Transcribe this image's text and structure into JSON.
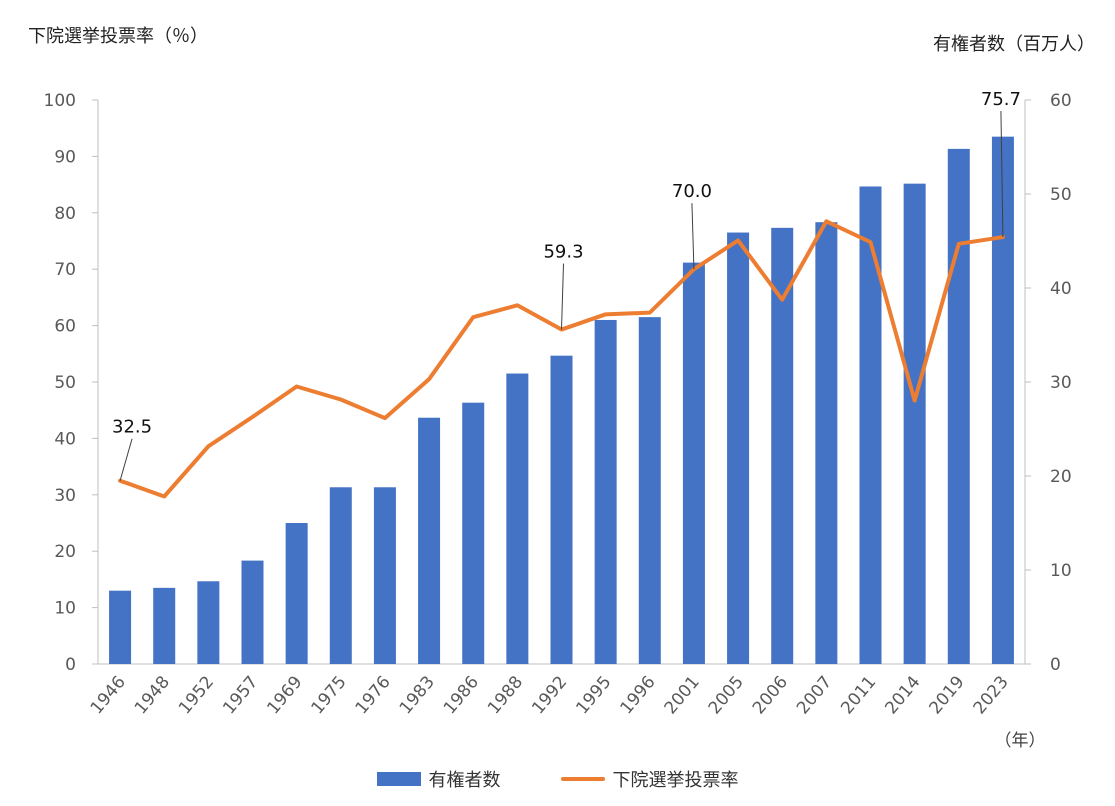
{
  "chart_data": {
    "type": "bar+line",
    "categories": [
      "1946",
      "1948",
      "1952",
      "1957",
      "1969",
      "1975",
      "1976",
      "1983",
      "1986",
      "1988",
      "1992",
      "1995",
      "1996",
      "2001",
      "2005",
      "2006",
      "2007",
      "2011",
      "2014",
      "2019",
      "2023"
    ],
    "series": [
      {
        "name": "有権者数",
        "type": "bar",
        "axis": "right",
        "color": "#4472C4",
        "values": [
          7.8,
          8.1,
          8.8,
          11.0,
          15.0,
          18.8,
          18.8,
          26.2,
          27.8,
          30.9,
          32.8,
          36.6,
          36.9,
          42.7,
          45.9,
          46.4,
          47.0,
          50.8,
          51.1,
          54.8,
          56.1
        ]
      },
      {
        "name": "下院選挙投票率",
        "type": "line",
        "axis": "left",
        "color": "#ED7D31",
        "values": [
          32.5,
          29.7,
          38.6,
          43.8,
          49.2,
          46.9,
          43.6,
          50.5,
          61.5,
          63.6,
          59.3,
          62.0,
          62.3,
          70.0,
          75.1,
          64.6,
          78.5,
          74.8,
          46.7,
          74.5,
          75.7
        ]
      }
    ],
    "annotations": [
      {
        "category": "1946",
        "label": "32.5"
      },
      {
        "category": "1992",
        "label": "59.3"
      },
      {
        "category": "2001",
        "label": "70.0"
      },
      {
        "category": "2023",
        "label": "75.7"
      }
    ],
    "ylabel_left": "下院選挙投票率（％）",
    "ylabel_right": "有権者数（百万人）",
    "xlabel": "（年）",
    "ylim_left": [
      0,
      100
    ],
    "ylim_right": [
      0,
      60
    ],
    "yticks_left": [
      0,
      10,
      20,
      30,
      40,
      50,
      60,
      70,
      80,
      90,
      100
    ],
    "yticks_right": [
      0,
      10,
      20,
      30,
      40,
      50,
      60
    ],
    "grid": false,
    "legend_position": "bottom"
  }
}
